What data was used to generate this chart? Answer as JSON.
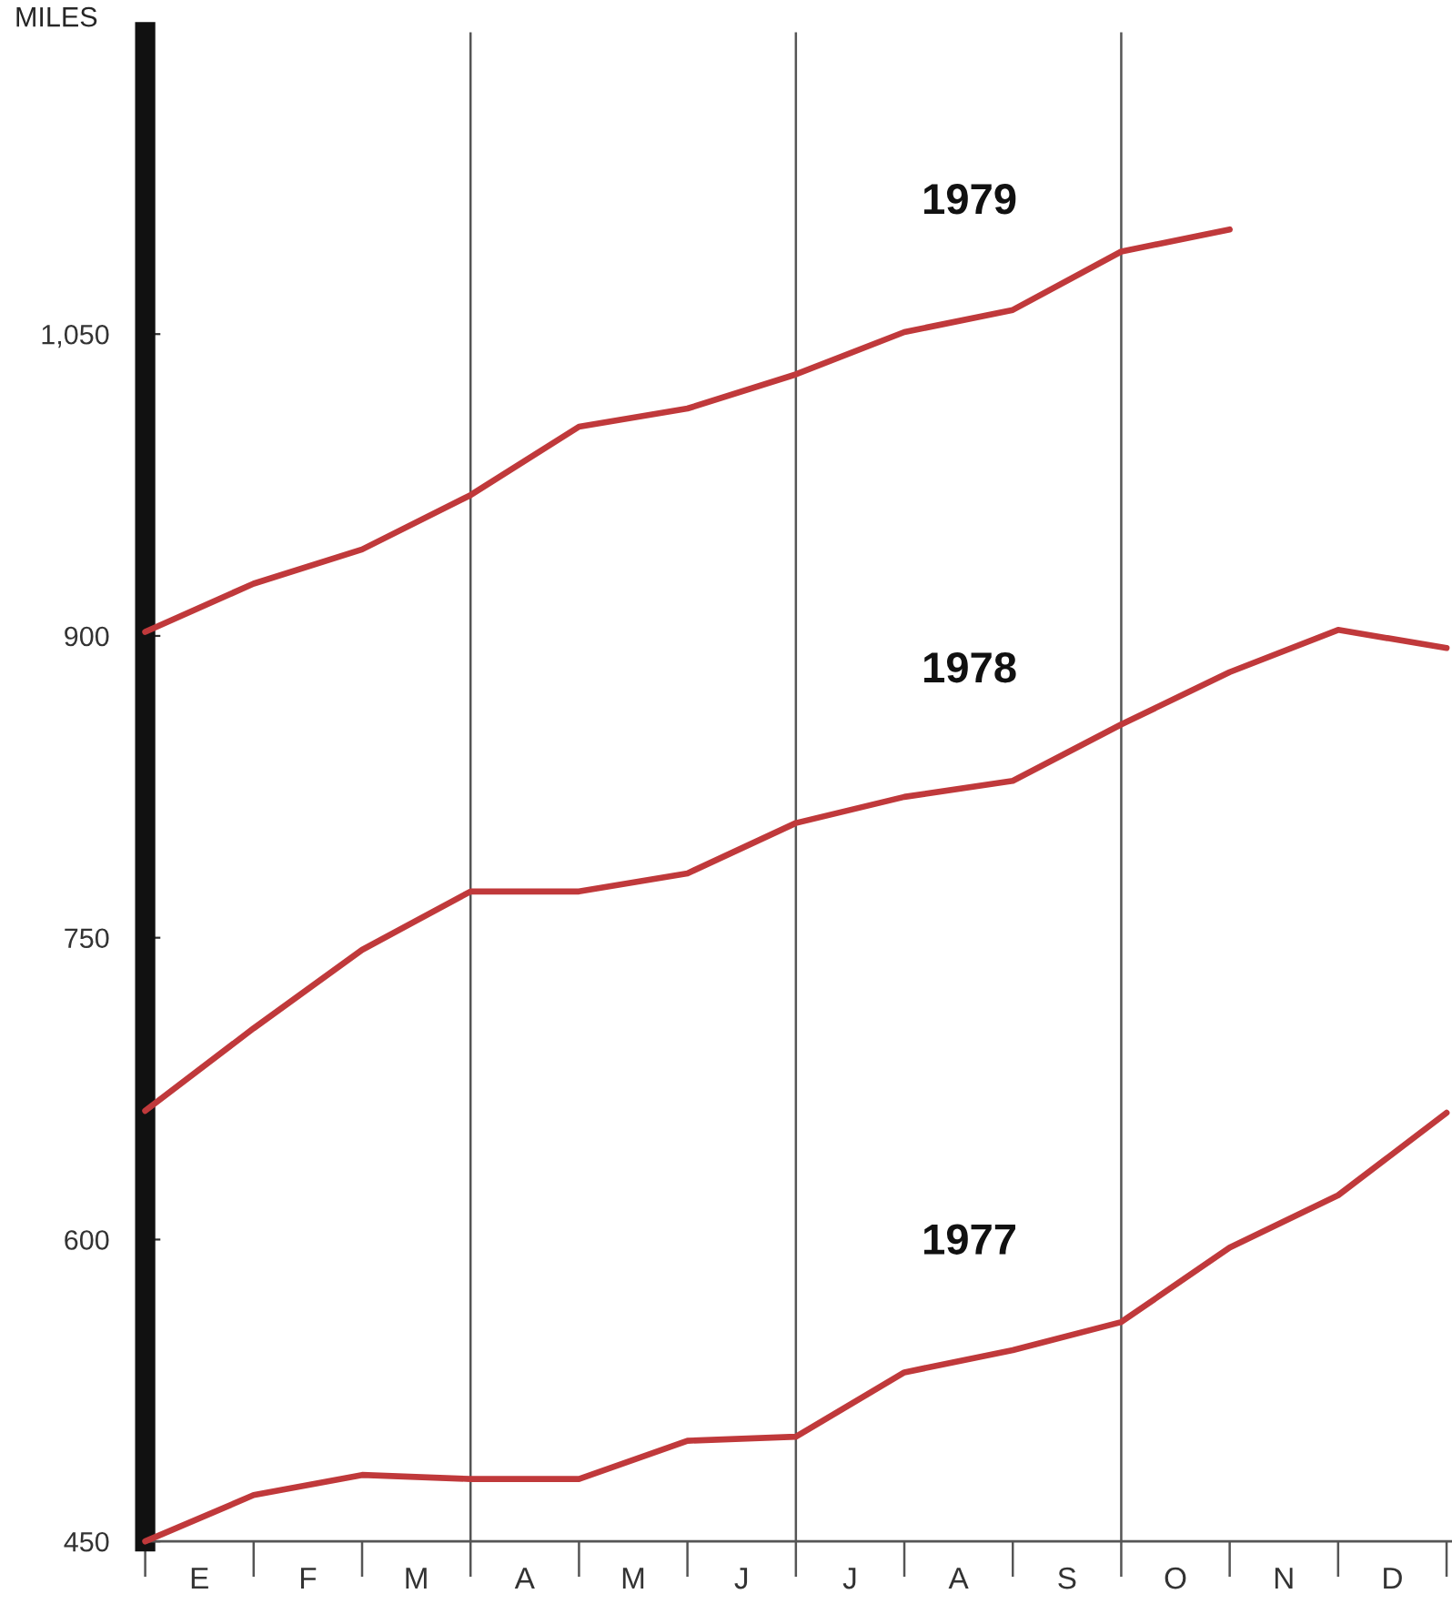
{
  "chart_data": {
    "type": "line",
    "ylabel": "MILES",
    "categories": [
      null,
      null,
      null,
      null,
      null,
      null,
      null,
      null,
      null,
      null,
      null,
      null,
      null
    ],
    "series": [
      {
        "name": "1979",
        "color": "#c0393b",
        "values": [
          902,
          926,
          943,
          970,
          1004,
          1013,
          1030,
          1051,
          1062,
          1091,
          1102,
          null,
          null
        ]
      },
      {
        "name": "1978",
        "color": "#c0393b",
        "values": [
          664,
          705,
          744,
          773,
          773,
          782,
          807,
          820,
          828,
          856,
          882,
          903,
          894
        ]
      },
      {
        "name": "1977",
        "color": "#c0393b",
        "values": [
          450,
          473,
          483,
          481,
          481,
          500,
          502,
          534,
          545,
          559,
          596,
          622,
          663
        ]
      }
    ],
    "annotations": [
      "E",
      "F",
      "M",
      "A",
      "M",
      "J",
      "J",
      "A",
      "S",
      "O",
      "N",
      "D"
    ],
    "ylim": [
      450,
      1200
    ],
    "yticks": [
      450,
      600,
      750,
      900,
      {
        "value": 1050,
        "label": "1,050"
      }
    ],
    "grid": "x",
    "legend": false,
    "marker": "none",
    "line_style": "solid"
  }
}
